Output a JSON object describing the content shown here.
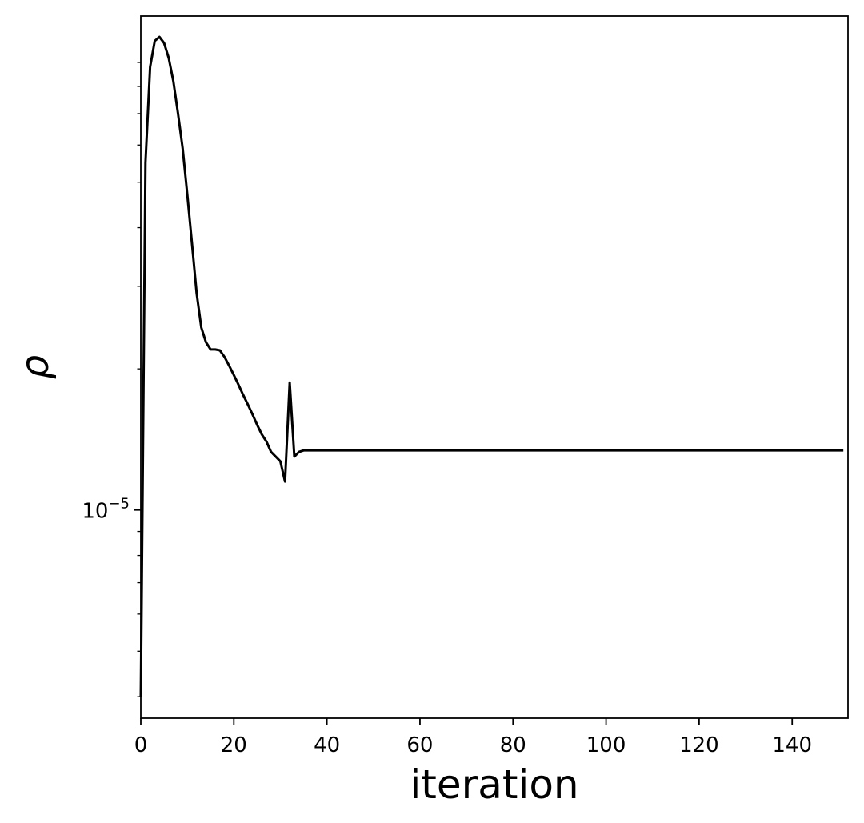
{
  "chart_data": {
    "type": "line",
    "xlabel": "iteration",
    "ylabel": "ρ",
    "xlim": [
      0,
      152
    ],
    "ylim": [
      3.6e-06,
      0.000113
    ],
    "yscale": "log",
    "x_ticks": [
      0,
      20,
      40,
      60,
      80,
      100,
      120,
      140
    ],
    "y_major_tick": {
      "value": 1e-05,
      "base": "10",
      "exponent": "−5"
    },
    "y_minor_ticks": [
      4e-06,
      5e-06,
      6e-06,
      7e-06,
      8e-06,
      9e-06,
      2e-05,
      3e-05,
      4e-05,
      5e-05,
      6e-05,
      7e-05,
      8e-05,
      9e-05
    ],
    "grid": false,
    "line_color": "#000000",
    "series": [
      {
        "x": [
          0,
          1,
          2,
          3,
          4,
          5,
          6,
          7,
          8,
          9,
          10,
          11,
          12,
          13,
          14,
          15,
          16,
          17,
          18,
          19,
          20,
          21,
          22,
          23,
          24,
          25,
          26,
          27,
          28,
          29,
          30,
          31,
          32,
          33,
          34,
          35,
          40,
          60,
          80,
          100,
          120,
          140,
          151
        ],
        "y": [
          4e-06,
          5.5e-05,
          8.8e-05,
          0.0001,
          0.000102,
          9.9e-05,
          9.2e-05,
          8.2e-05,
          7e-05,
          5.9e-05,
          4.7e-05,
          3.7e-05,
          2.9e-05,
          2.45e-05,
          2.28e-05,
          2.2e-05,
          2.2e-05,
          2.19e-05,
          2.12e-05,
          2.03e-05,
          1.94e-05,
          1.85e-05,
          1.76e-05,
          1.68e-05,
          1.6e-05,
          1.52e-05,
          1.45e-05,
          1.4e-05,
          1.33e-05,
          1.3e-05,
          1.27e-05,
          1.15e-05,
          1.87e-05,
          1.3e-05,
          1.33e-05,
          1.34e-05,
          1.34e-05,
          1.34e-05,
          1.34e-05,
          1.34e-05,
          1.34e-05,
          1.34e-05,
          1.34e-05
        ]
      }
    ]
  }
}
